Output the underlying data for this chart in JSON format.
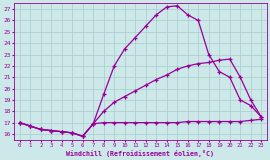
{
  "xlabel": "Windchill (Refroidissement éolien,°C)",
  "bg_color": "#cce8e8",
  "line_color": "#990099",
  "grid_color": "#aacccc",
  "xlim": [
    -0.5,
    23.5
  ],
  "ylim": [
    15.5,
    27.5
  ],
  "xticks": [
    0,
    1,
    2,
    3,
    4,
    5,
    6,
    7,
    8,
    9,
    10,
    11,
    12,
    13,
    14,
    15,
    16,
    17,
    18,
    19,
    20,
    21,
    22,
    23
  ],
  "yticks": [
    16,
    17,
    18,
    19,
    20,
    21,
    22,
    23,
    24,
    25,
    26,
    27
  ],
  "line1_x": [
    0,
    1,
    2,
    3,
    4,
    5,
    6,
    7,
    8,
    9,
    10,
    11,
    12,
    13,
    14,
    15,
    16,
    17,
    18,
    19,
    20,
    21,
    22,
    23
  ],
  "line1_y": [
    17.0,
    16.7,
    16.4,
    16.3,
    16.2,
    16.1,
    15.8,
    16.9,
    17.0,
    17.0,
    17.0,
    17.0,
    17.0,
    17.0,
    17.0,
    17.0,
    17.1,
    17.1,
    17.1,
    17.1,
    17.1,
    17.1,
    17.2,
    17.3
  ],
  "line2_x": [
    0,
    1,
    2,
    3,
    4,
    5,
    6,
    7,
    8,
    9,
    10,
    11,
    12,
    13,
    14,
    15,
    16,
    17,
    18,
    19,
    20,
    21,
    22,
    23
  ],
  "line2_y": [
    17.0,
    16.7,
    16.4,
    16.3,
    16.2,
    16.1,
    15.8,
    16.9,
    18.0,
    18.8,
    19.3,
    19.8,
    20.3,
    20.8,
    21.2,
    21.7,
    22.0,
    22.2,
    22.3,
    22.5,
    22.6,
    21.0,
    19.0,
    17.5
  ],
  "line3_x": [
    0,
    1,
    2,
    3,
    4,
    5,
    6,
    7,
    8,
    9,
    10,
    11,
    12,
    13,
    14,
    15,
    16,
    17,
    18,
    19,
    20,
    21,
    22,
    23
  ],
  "line3_y": [
    17.0,
    16.7,
    16.4,
    16.3,
    16.2,
    16.1,
    15.8,
    16.9,
    19.5,
    22.0,
    23.5,
    24.5,
    25.5,
    26.5,
    27.2,
    27.3,
    26.5,
    26.0,
    23.0,
    21.5,
    21.0,
    19.0,
    18.5,
    17.5
  ]
}
